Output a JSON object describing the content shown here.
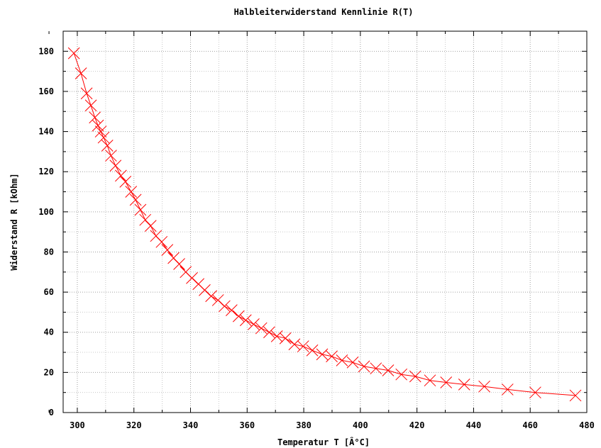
{
  "chart_data": {
    "type": "line",
    "title": "Halbleiterwiderstand Kennlinie R(T)",
    "xlabel": "Temperatur T [Â°C]",
    "ylabel": "Widerstand R [kOhm]",
    "xlim": [
      295,
      480
    ],
    "ylim": [
      0,
      190
    ],
    "grid": true,
    "xticks": [
      300,
      320,
      340,
      360,
      380,
      400,
      420,
      440,
      460,
      480
    ],
    "yticks": [
      0,
      20,
      40,
      60,
      80,
      100,
      120,
      140,
      160,
      180
    ],
    "series": [
      {
        "color": "#ff0000",
        "marker": "x",
        "x": [
          298.8,
          301.3,
          303.3,
          304.8,
          306.2,
          307.3,
          308.3,
          309.3,
          310.6,
          311.9,
          313.5,
          315.4,
          317.0,
          319.0,
          320.6,
          322.3,
          324.0,
          325.9,
          327.8,
          329.8,
          331.8,
          334.0,
          336.0,
          338.3,
          340.5,
          342.8,
          345.0,
          347.3,
          349.7,
          352.0,
          354.5,
          357.0,
          359.5,
          362.3,
          365.0,
          367.8,
          370.5,
          373.5,
          376.7,
          379.8,
          383.0,
          386.5,
          389.9,
          393.5,
          397.3,
          401.3,
          405.5,
          409.8,
          414.5,
          419.4,
          424.6,
          430.3,
          436.7,
          443.8,
          452.0,
          461.8,
          476.0
        ],
        "y": [
          179,
          169,
          159,
          153,
          147,
          143,
          140,
          137,
          133,
          128,
          123,
          118,
          115,
          110,
          106,
          101,
          96,
          93,
          88,
          85,
          81,
          77,
          74,
          70,
          67,
          64,
          61,
          58,
          56,
          53,
          51,
          48,
          46,
          44,
          42,
          40,
          38,
          37,
          34,
          33,
          31,
          29,
          28,
          26,
          25,
          23,
          22,
          21,
          19,
          18,
          16,
          15,
          14,
          13,
          11.5,
          10,
          8.5
        ]
      }
    ]
  }
}
